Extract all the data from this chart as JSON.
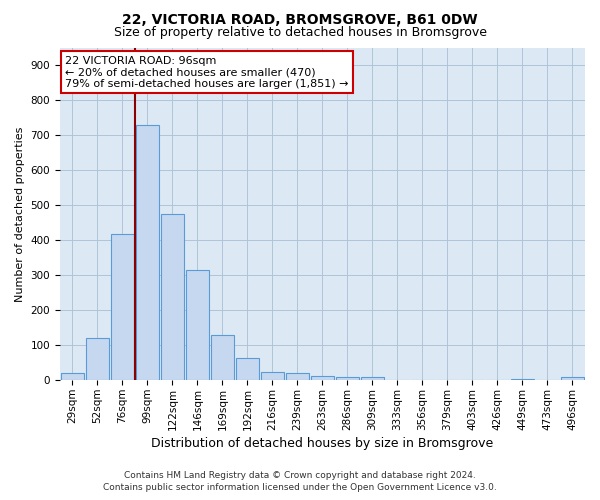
{
  "title1": "22, VICTORIA ROAD, BROMSGROVE, B61 0DW",
  "title2": "Size of property relative to detached houses in Bromsgrove",
  "xlabel": "Distribution of detached houses by size in Bromsgrove",
  "ylabel": "Number of detached properties",
  "bar_categories": [
    "29sqm",
    "52sqm",
    "76sqm",
    "99sqm",
    "122sqm",
    "146sqm",
    "169sqm",
    "192sqm",
    "216sqm",
    "239sqm",
    "263sqm",
    "286sqm",
    "309sqm",
    "333sqm",
    "356sqm",
    "379sqm",
    "403sqm",
    "426sqm",
    "449sqm",
    "473sqm",
    "496sqm"
  ],
  "bar_values": [
    20,
    122,
    418,
    730,
    476,
    315,
    130,
    65,
    25,
    20,
    12,
    8,
    8,
    0,
    0,
    0,
    0,
    0,
    5,
    0,
    8
  ],
  "bar_color": "#c5d8f0",
  "bar_edge_color": "#5b9bd5",
  "vline_x_index": 3,
  "vline_color": "#8b0000",
  "annotation_line1": "22 VICTORIA ROAD: 96sqm",
  "annotation_line2": "← 20% of detached houses are smaller (470)",
  "annotation_line3": "79% of semi-detached houses are larger (1,851) →",
  "annotation_box_color": "#cc0000",
  "ylim": [
    0,
    950
  ],
  "yticks": [
    0,
    100,
    200,
    300,
    400,
    500,
    600,
    700,
    800,
    900
  ],
  "background_color": "#ffffff",
  "plot_bg_color": "#dce9f5",
  "grid_color": "#b0c4d8",
  "footer_line1": "Contains HM Land Registry data © Crown copyright and database right 2024.",
  "footer_line2": "Contains public sector information licensed under the Open Government Licence v3.0.",
  "title1_fontsize": 10,
  "title2_fontsize": 9,
  "xlabel_fontsize": 9,
  "ylabel_fontsize": 8,
  "tick_fontsize": 7.5,
  "footer_fontsize": 6.5,
  "annotation_fontsize": 8
}
